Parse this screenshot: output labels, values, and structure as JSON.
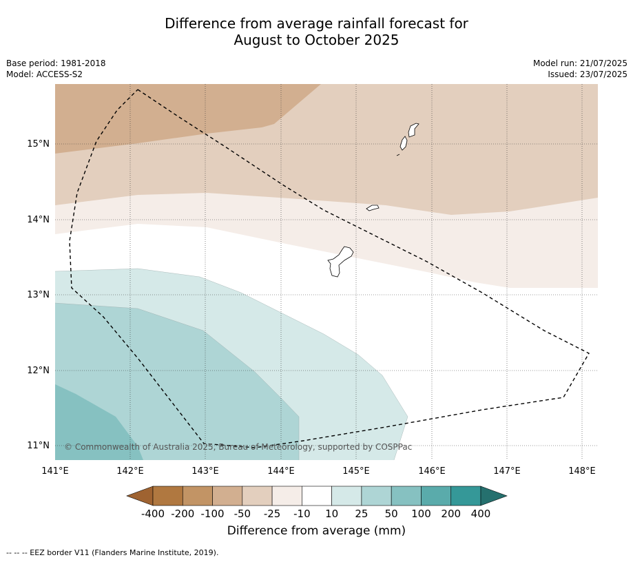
{
  "title_line1": "Difference from average rainfall forecast for",
  "title_line2": "August to October 2025",
  "meta": {
    "base_period": "Base period: 1981-2018",
    "model": "Model: ACCESS-S2",
    "model_run": "Model run: 21/07/2025",
    "issued": "Issued: 23/07/2025"
  },
  "copyright": "© Commonwealth of Australia 2025, Bureau of Meteorology, supported by COSPPac",
  "axes": {
    "lon_labels": [
      "141°E",
      "142°E",
      "143°E",
      "144°E",
      "145°E",
      "146°E",
      "147°E",
      "148°E"
    ],
    "lat_labels": [
      "15°N",
      "14°N",
      "13°N",
      "12°N",
      "11°N"
    ]
  },
  "colorbar": {
    "title": "Difference from average (mm)",
    "labels": [
      "-400",
      "-200",
      "-100",
      "-50",
      "-25",
      "-10",
      "10",
      "25",
      "50",
      "100",
      "200",
      "400"
    ],
    "colors": [
      "#9f6331",
      "#b07840",
      "#c29465",
      "#d2af90",
      "#e3cfbe",
      "#f5ede8",
      "#ffffff",
      "#d5e9e8",
      "#aed5d5",
      "#86c1c1",
      "#5aabab",
      "#359898",
      "#25706e"
    ]
  },
  "footnote": "--  --  -- EEZ border V11 (Flanders Marine Institute, 2019).",
  "icons": {
    "dash_legend": "dashed-line-icon",
    "island": "island-outline-icon"
  }
}
